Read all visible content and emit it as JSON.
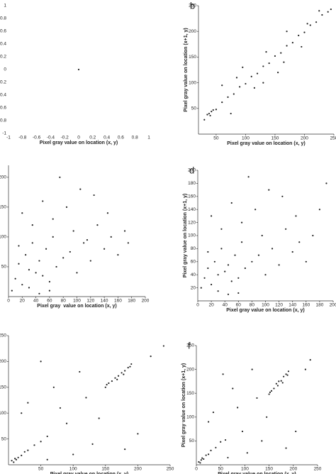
{
  "chart_data": [
    {
      "type": "scatter",
      "x_label": "Pixel gray value on location (x, y)",
      "axis_lines": false,
      "color": "#222222",
      "xlim": [
        -1,
        1
      ],
      "ylim": [
        -1,
        1
      ],
      "xticks": [
        -1,
        -0.8,
        -0.6,
        -0.4,
        -0.2,
        0,
        0.2,
        0.4,
        0.6,
        0.8,
        1
      ],
      "yticks": [
        -1,
        -0.8,
        -0.6,
        -0.4,
        -0.2,
        0,
        0.2,
        0.4,
        0.6,
        0.8,
        1
      ],
      "x": [
        0
      ],
      "y": [
        0
      ]
    },
    {
      "type": "scatter",
      "panel_label": "b",
      "x_label": "Pixel gray value on location (x, y)",
      "y_label": "Pixel gray value on location (x+1, y)",
      "axis_lines": true,
      "color": "#222222",
      "xlim": [
        20,
        250
      ],
      "ylim": [
        0,
        250
      ],
      "xticks": [
        50,
        100,
        150,
        200,
        250
      ],
      "yticks": [
        50,
        100,
        150,
        200,
        250
      ],
      "x": [
        30,
        35,
        40,
        45,
        50,
        38,
        42,
        60,
        70,
        80,
        90,
        100,
        110,
        120,
        130,
        140,
        150,
        160,
        170,
        180,
        190,
        200,
        210,
        220,
        230,
        240,
        245,
        85,
        115,
        135,
        165,
        195,
        225,
        75,
        95,
        155,
        205,
        130,
        170,
        60
      ],
      "y": [
        28,
        38,
        36,
        47,
        48,
        40,
        44,
        62,
        72,
        78,
        92,
        98,
        112,
        118,
        132,
        138,
        152,
        158,
        172,
        178,
        192,
        198,
        212,
        218,
        232,
        238,
        243,
        110,
        90,
        160,
        140,
        170,
        240,
        40,
        130,
        120,
        215,
        100,
        200,
        95
      ]
    },
    {
      "type": "scatter",
      "x_label": "Pixel gray  value on location (x, y)",
      "axis_lines": true,
      "color": "#222222",
      "xlim": [
        0,
        200
      ],
      "ylim": [
        0,
        220
      ],
      "xticks": [
        0,
        20,
        40,
        60,
        80,
        100,
        120,
        140,
        160,
        180,
        200
      ],
      "yticks": [
        50,
        100,
        150,
        200
      ],
      "x": [
        5,
        10,
        15,
        20,
        25,
        30,
        35,
        40,
        45,
        50,
        55,
        60,
        65,
        70,
        80,
        90,
        100,
        110,
        120,
        130,
        140,
        150,
        160,
        170,
        175,
        20,
        35,
        50,
        65,
        85,
        105,
        125,
        145,
        45,
        30,
        60,
        15,
        75,
        95,
        115
      ],
      "y": [
        10,
        30,
        55,
        20,
        70,
        45,
        90,
        40,
        60,
        35,
        80,
        25,
        100,
        50,
        65,
        75,
        40,
        90,
        60,
        120,
        80,
        100,
        70,
        110,
        90,
        140,
        120,
        160,
        130,
        150,
        180,
        170,
        140,
        5,
        15,
        10,
        85,
        200,
        110,
        95
      ]
    },
    {
      "type": "scatter",
      "panel_label": "d",
      "x_label": "Pixel gray value on location (x, y)",
      "y_label": "Pixel gray value on location (x+1, y)",
      "axis_lines": true,
      "color": "#222222",
      "xlim": [
        0,
        200
      ],
      "ylim": [
        0,
        200
      ],
      "xticks": [
        0,
        20,
        40,
        60,
        80,
        100,
        120,
        140,
        160,
        180,
        200
      ],
      "yticks": [
        20,
        40,
        60,
        80,
        100,
        120,
        140,
        160,
        180,
        200
      ],
      "x": [
        5,
        10,
        15,
        20,
        25,
        30,
        35,
        40,
        45,
        50,
        55,
        60,
        65,
        70,
        80,
        90,
        100,
        110,
        120,
        130,
        140,
        150,
        160,
        170,
        180,
        190,
        20,
        35,
        50,
        65,
        85,
        105,
        125,
        145,
        45,
        30,
        60,
        15,
        75,
        95
      ],
      "y": [
        20,
        35,
        50,
        25,
        60,
        40,
        80,
        45,
        55,
        30,
        70,
        35,
        90,
        50,
        60,
        70,
        40,
        80,
        55,
        110,
        75,
        90,
        60,
        100,
        140,
        180,
        130,
        110,
        150,
        120,
        140,
        170,
        160,
        130,
        10,
        15,
        12,
        75,
        190,
        100
      ]
    },
    {
      "type": "scatter",
      "x_label": "Pixel gray value on location (x, y)",
      "axis_lines": true,
      "color": "#222222",
      "xlim": [
        0,
        250
      ],
      "ylim": [
        0,
        250
      ],
      "xticks": [
        50,
        100,
        150,
        200,
        250
      ],
      "yticks": [
        50,
        100,
        150,
        200,
        250
      ],
      "x": [
        5,
        8,
        10,
        12,
        15,
        20,
        25,
        30,
        40,
        50,
        60,
        150,
        155,
        160,
        165,
        170,
        175,
        180,
        185,
        190,
        152,
        168,
        178,
        188,
        30,
        50,
        70,
        90,
        110,
        130,
        200,
        220,
        240,
        100,
        80,
        140,
        60,
        120,
        180,
        20
      ],
      "y": [
        8,
        5,
        12,
        10,
        14,
        18,
        25,
        28,
        38,
        45,
        55,
        150,
        158,
        162,
        168,
        172,
        178,
        182,
        188,
        195,
        155,
        165,
        175,
        190,
        120,
        200,
        150,
        80,
        180,
        40,
        60,
        210,
        230,
        20,
        110,
        90,
        10,
        130,
        30,
        100
      ]
    },
    {
      "type": "scatter",
      "panel_label": "f",
      "x_label": "Pixel gray value on location (x, y)",
      "y_label": "Pixel gray value on location (x+1, y)",
      "axis_lines": true,
      "color": "#222222",
      "xlim": [
        0,
        250
      ],
      "ylim": [
        0,
        250
      ],
      "xticks": [
        0,
        50,
        100,
        150,
        200,
        250
      ],
      "yticks": [
        50,
        100,
        150,
        200,
        250
      ],
      "x": [
        5,
        8,
        10,
        12,
        15,
        20,
        25,
        30,
        40,
        50,
        60,
        150,
        155,
        160,
        165,
        170,
        175,
        180,
        185,
        190,
        152,
        168,
        178,
        188,
        35,
        55,
        75,
        95,
        115,
        135,
        205,
        225,
        235,
        105,
        85,
        145,
        65,
        125,
        185,
        25
      ],
      "y": [
        6,
        4,
        10,
        14,
        12,
        20,
        22,
        30,
        36,
        48,
        52,
        148,
        155,
        160,
        170,
        175,
        176,
        185,
        190,
        196,
        152,
        166,
        172,
        188,
        110,
        190,
        160,
        70,
        200,
        50,
        70,
        200,
        220,
        25,
        120,
        100,
        15,
        140,
        35,
        90
      ]
    }
  ]
}
